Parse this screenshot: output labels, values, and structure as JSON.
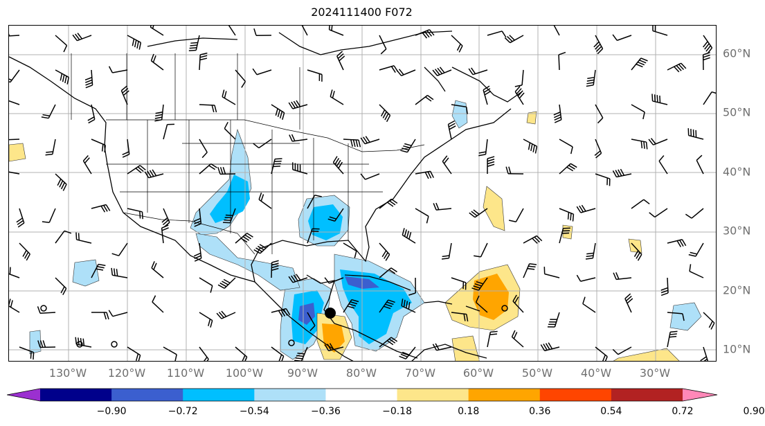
{
  "title": "2024111400 F072",
  "lat_labels": [
    "60°N",
    "50°N",
    "40°N",
    "30°N",
    "20°N",
    "10°N"
  ],
  "lon_labels": [
    "130°W",
    "120°W",
    "110°W",
    "100°W",
    "90°W",
    "80°W",
    "70°W",
    "60°W",
    "50°W",
    "40°W",
    "30°W"
  ],
  "colorbar": {
    "ticks": [
      "−0.90",
      "−0.72",
      "−0.54",
      "−0.36",
      "−0.18",
      "0.18",
      "0.36",
      "0.54",
      "0.72",
      "0.90"
    ],
    "colors": [
      "#9b30d0",
      "#00008b",
      "#3b5fcf",
      "#00bfff",
      "#aee0f8",
      "#ffffff",
      "#fde68a",
      "#ffa500",
      "#ff4500",
      "#b22222",
      "#ff88b8"
    ]
  },
  "colors": {
    "gridline": "#b0b0b0",
    "axis_label": "#6e6e6e",
    "coastline": "#000000"
  }
}
